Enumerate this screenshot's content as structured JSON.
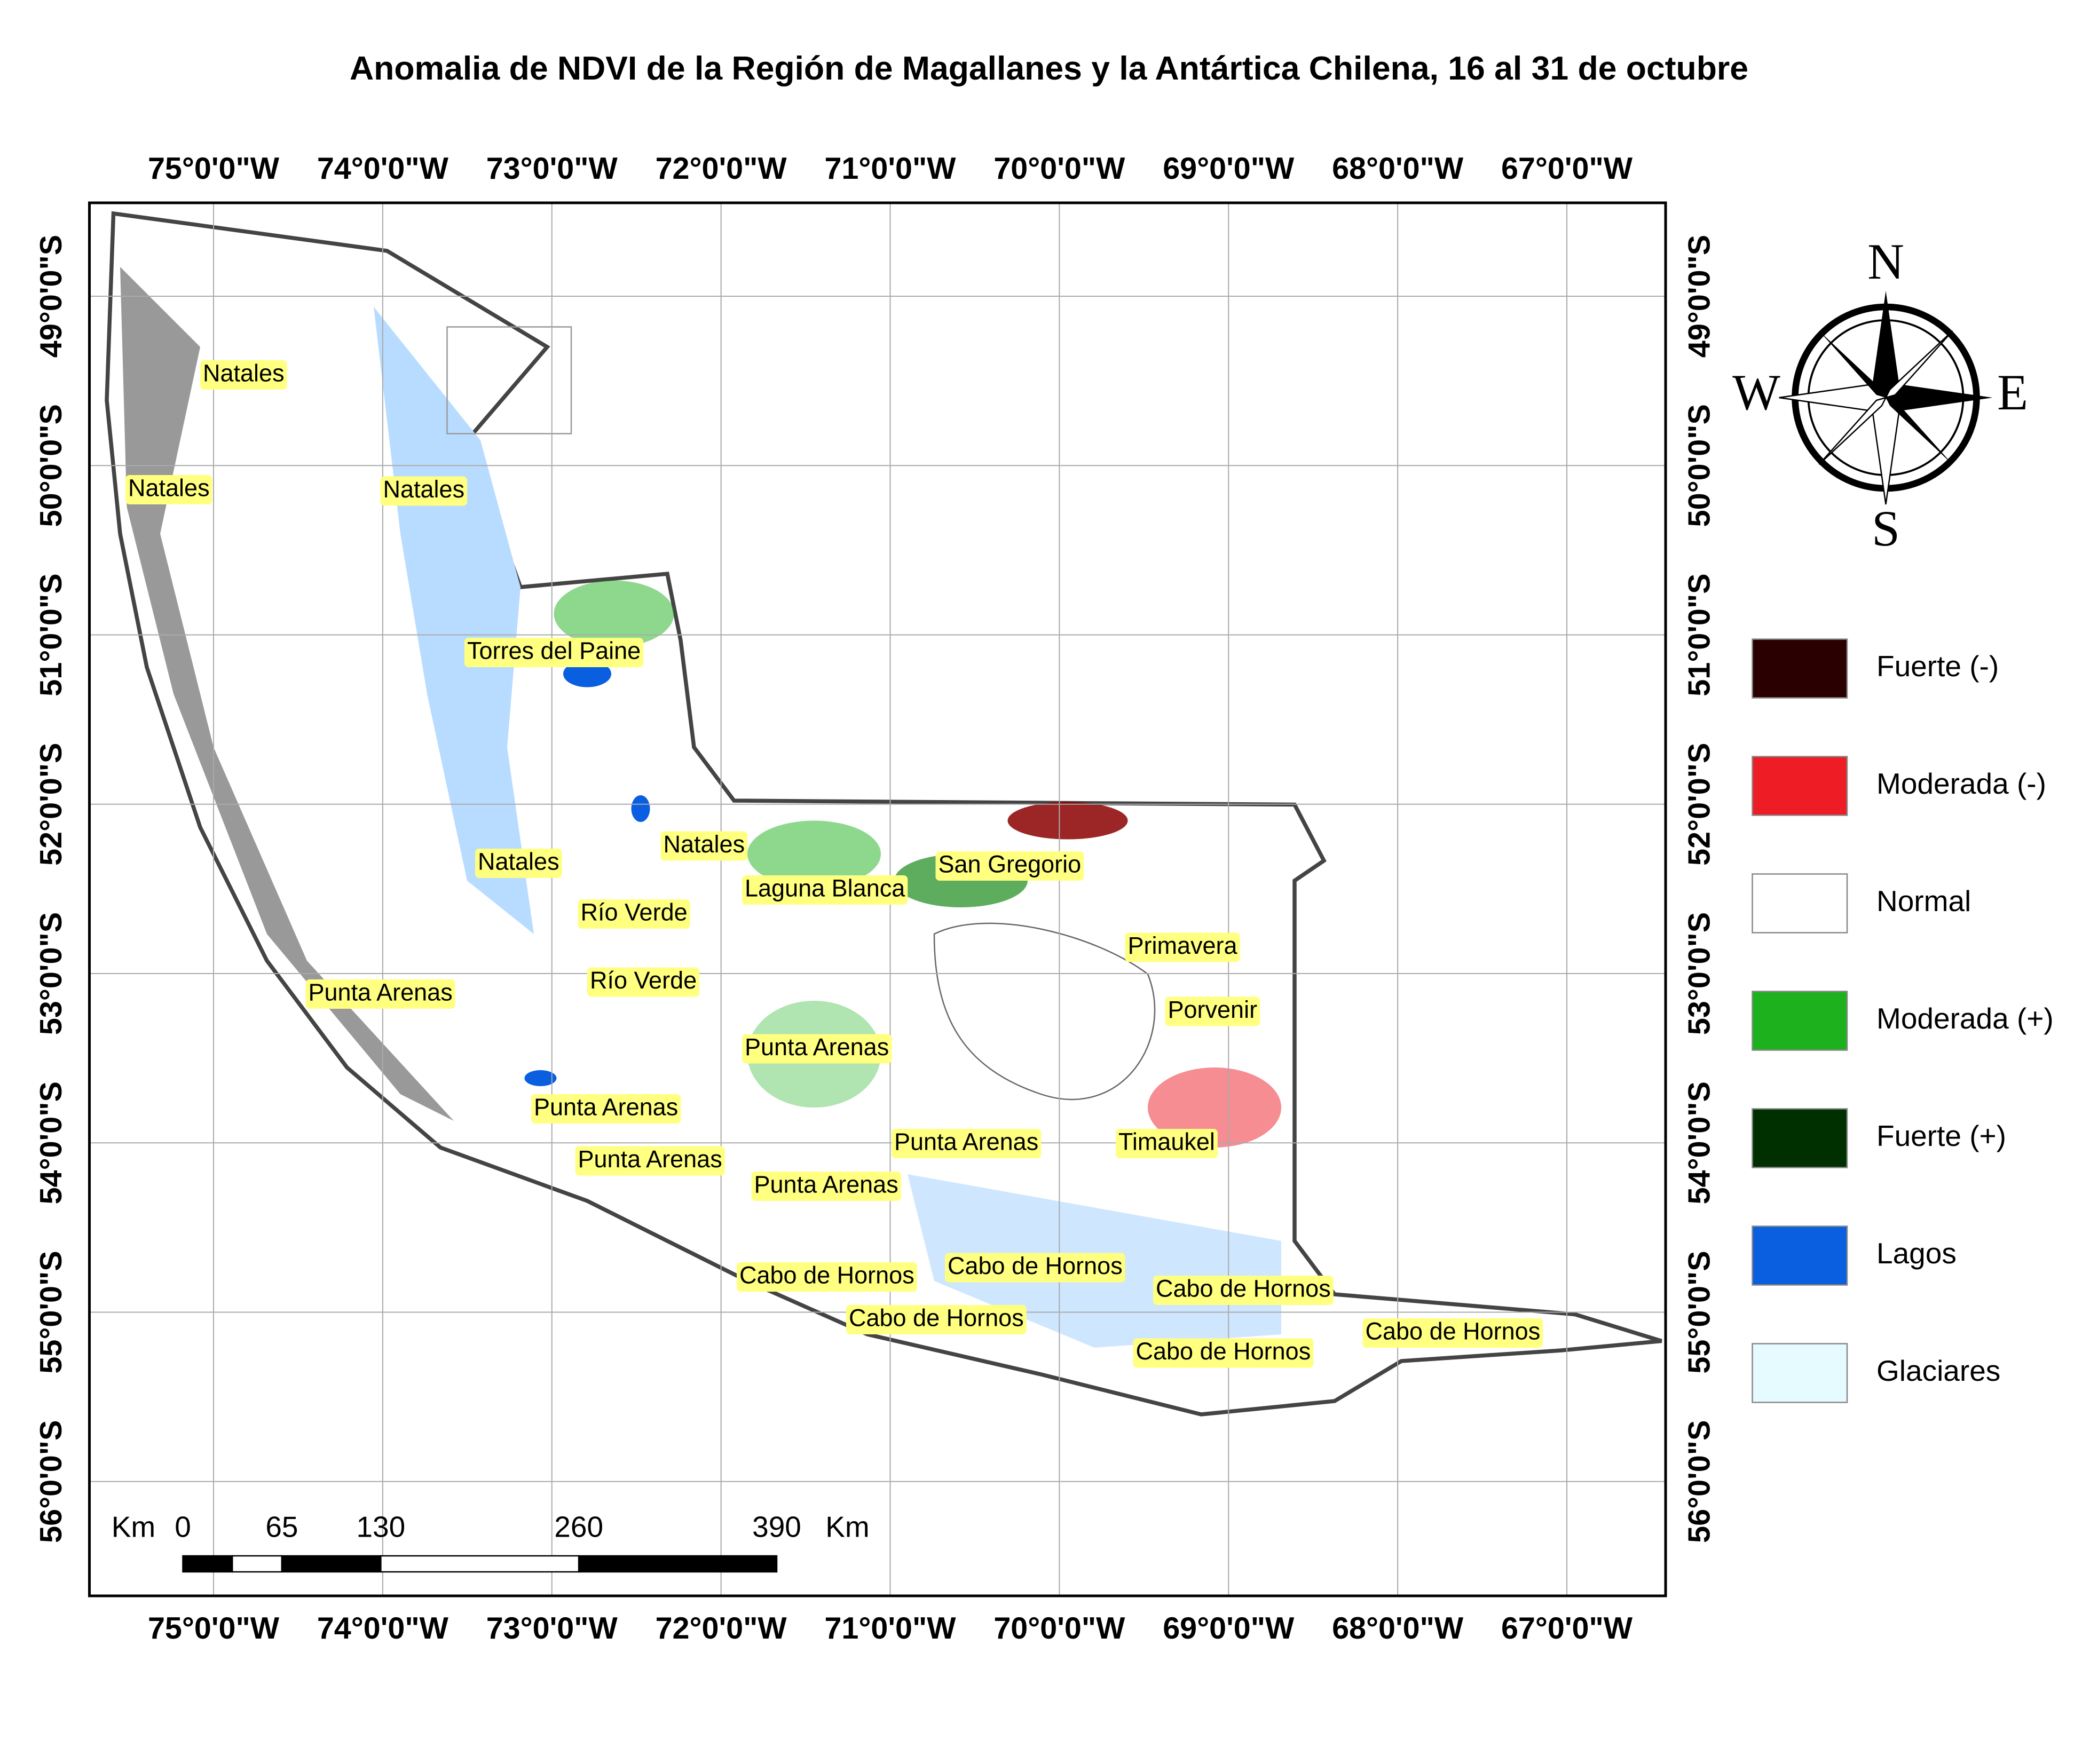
{
  "title": "Anomalia de NDVI de la Región de Magallanes y la Antártica Chilena, 16 al 31 de octubre",
  "lon_labels": [
    "75°0'0\"W",
    "74°0'0\"W",
    "73°0'0\"W",
    "72°0'0\"W",
    "71°0'0\"W",
    "70°0'0\"W",
    "69°0'0\"W",
    "68°0'0\"W",
    "67°0'0\"W"
  ],
  "lat_labels": [
    "49°0'0\"S",
    "50°0'0\"S",
    "51°0'0\"S",
    "52°0'0\"S",
    "53°0'0\"S",
    "54°0'0\"S",
    "55°0'0\"S",
    "56°0'0\"S"
  ],
  "compass": {
    "n": "N",
    "s": "S",
    "e": "E",
    "w": "W"
  },
  "legend": [
    {
      "label": "Fuerte (-)",
      "color": "#2a0000"
    },
    {
      "label": "Moderada (-)",
      "color": "#ee1c25"
    },
    {
      "label": "Normal",
      "color": "#ffffff"
    },
    {
      "label": "Moderada (+)",
      "color": "#1db21d"
    },
    {
      "label": "Fuerte (+)",
      "color": "#003000"
    },
    {
      "label": "Lagos",
      "color": "#0a5ee0"
    },
    {
      "label": "Glaciares",
      "color": "#e6fbff"
    }
  ],
  "scale_bar": {
    "unit": "Km",
    "ticks": [
      0,
      65,
      130,
      260,
      390
    ]
  },
  "places": [
    "Natales",
    "Natales",
    "Natales",
    "Torres del Paine",
    "Natales",
    "Natales",
    "Laguna Blanca",
    "San Gregorio",
    "Río Verde",
    "Río Verde",
    "Punta Arenas",
    "Primavera",
    "Porvenir",
    "Punta Arenas",
    "Punta Arenas",
    "Punta Arenas",
    "Punta Arenas",
    "Timaukel",
    "Punta Arenas",
    "Cabo de Hornos",
    "Cabo de Hornos",
    "Cabo de Hornos",
    "Cabo de Hornos",
    "Cabo de Hornos",
    "Cabo de Hornos"
  ]
}
